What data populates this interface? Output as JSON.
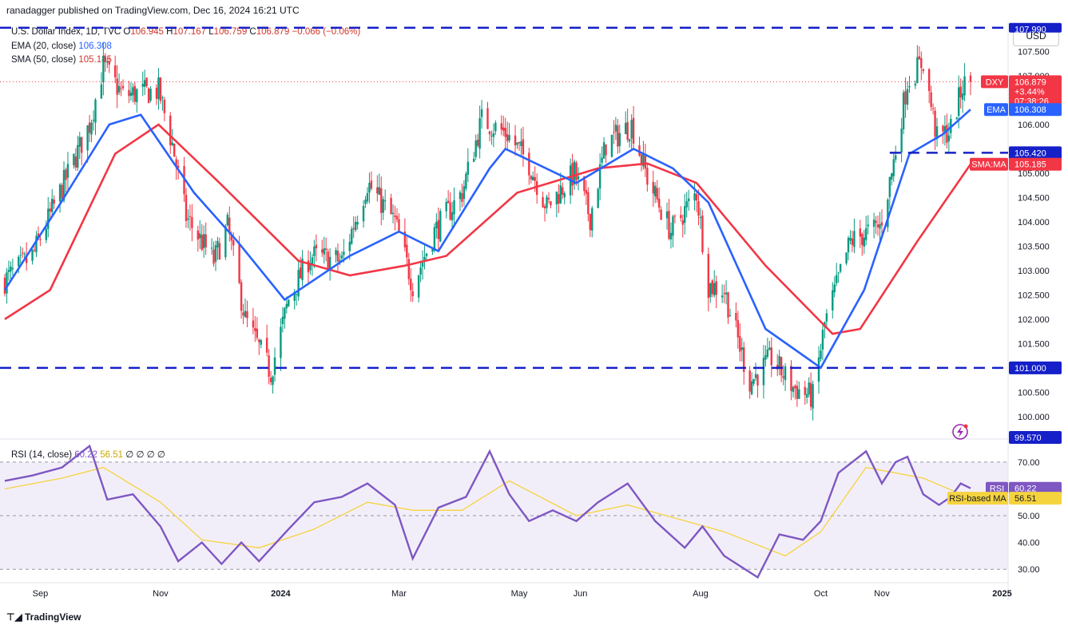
{
  "header": {
    "published": "ranadagger published on TradingView.com, Dec 16, 2024 16:21 UTC"
  },
  "legend": {
    "symbol": "U.S. Dollar Index, 1D, TVC",
    "o_label": "O",
    "o": "106.945",
    "h_label": "H",
    "h": "107.167",
    "l_label": "L",
    "l": "106.759",
    "c_label": "C",
    "c": "106.879",
    "change": "−0.066 (−0.06%)",
    "ema_label": "EMA (20, close)",
    "ema_value": "106.308",
    "sma_label": "SMA (50, close)",
    "sma_value": "105.185",
    "rsi_label": "RSI (14, close)",
    "rsi_value": "60.22",
    "rsi_ma_value": "56.51",
    "rsi_extra": "∅ ∅ ∅ ∅"
  },
  "currency_button": "USD",
  "price_ticks": [
    "107.500",
    "107.000",
    "106.500",
    "106.000",
    "105.500",
    "105.000",
    "104.500",
    "104.000",
    "103.500",
    "103.000",
    "102.500",
    "102.000",
    "101.500",
    "101.000",
    "100.500",
    "100.000"
  ],
  "rsi_ticks": [
    "70.00",
    "50.00",
    "40.00",
    "30.00"
  ],
  "x_ticks": [
    "Sep",
    "Nov",
    "2024",
    "Mar",
    "May",
    "Jun",
    "Aug",
    "Oct",
    "Nov",
    "2025"
  ],
  "price_badges": {
    "dxy_label": "DXY",
    "dxy_price": "106.879",
    "dxy_pct": "+3.44%",
    "dxy_time": "07:38:26",
    "ema_label": "EMA",
    "ema_price": "106.308",
    "support_price": "105.420",
    "sma_label": "SMA:MA",
    "sma_price": "105.185",
    "top_price": "107.990",
    "lower_support": "101.000",
    "bottom_price": "99.570"
  },
  "rsi_badges": {
    "rsi_label": "RSI",
    "rsi_value": "60.22",
    "ma_label": "RSI-based MA",
    "ma_value": "56.51"
  },
  "brand": "TradingView",
  "colors": {
    "up": "#089981",
    "down": "#f23645",
    "ema": "#2962ff",
    "sma": "#f23645",
    "rsi": "#7e57c2",
    "rsi_ma": "#f5d33f",
    "level": "#1520c8"
  },
  "chart_data": {
    "type": "candlestick",
    "symbol": "DXY",
    "timeframe": "1D",
    "x_range": [
      "2023-08-14",
      "2024-12-31"
    ],
    "ylim": [
      99.57,
      108.1
    ],
    "levels": [
      107.99,
      105.42,
      101.0
    ],
    "price_path": [
      [
        "2023-08-14",
        102.8
      ],
      [
        "2023-08-28",
        103.3
      ],
      [
        "2023-09-12",
        104.7
      ],
      [
        "2023-09-26",
        106.0
      ],
      [
        "2023-10-03",
        107.2
      ],
      [
        "2023-10-13",
        106.6
      ],
      [
        "2023-10-31",
        106.7
      ],
      [
        "2023-11-07",
        105.6
      ],
      [
        "2023-11-14",
        104.1
      ],
      [
        "2023-11-28",
        103.2
      ],
      [
        "2023-12-05",
        103.9
      ],
      [
        "2023-12-14",
        102.0
      ],
      [
        "2023-12-27",
        100.9
      ],
      [
        "2024-01-05",
        102.4
      ],
      [
        "2024-01-16",
        103.3
      ],
      [
        "2024-02-01",
        103.2
      ],
      [
        "2024-02-14",
        104.8
      ],
      [
        "2024-02-28",
        104.0
      ],
      [
        "2024-03-08",
        102.7
      ],
      [
        "2024-03-19",
        103.8
      ],
      [
        "2024-04-02",
        104.6
      ],
      [
        "2024-04-12",
        106.1
      ],
      [
        "2024-04-25",
        105.8
      ],
      [
        "2024-05-06",
        105.2
      ],
      [
        "2024-05-15",
        104.3
      ],
      [
        "2024-05-29",
        105.0
      ],
      [
        "2024-06-06",
        104.1
      ],
      [
        "2024-06-14",
        105.6
      ],
      [
        "2024-06-27",
        106.0
      ],
      [
        "2024-07-05",
        104.9
      ],
      [
        "2024-07-17",
        103.8
      ],
      [
        "2024-07-30",
        104.6
      ],
      [
        "2024-08-05",
        102.7
      ],
      [
        "2024-08-13",
        102.6
      ],
      [
        "2024-08-26",
        100.7
      ],
      [
        "2024-09-06",
        101.2
      ],
      [
        "2024-09-17",
        100.6
      ],
      [
        "2024-09-27",
        100.4
      ],
      [
        "2024-10-03",
        101.9
      ],
      [
        "2024-10-16",
        103.6
      ],
      [
        "2024-10-31",
        103.9
      ],
      [
        "2024-11-06",
        105.0
      ],
      [
        "2024-11-14",
        106.9
      ],
      [
        "2024-11-22",
        107.3
      ],
      [
        "2024-11-29",
        105.7
      ],
      [
        "2024-12-06",
        105.9
      ],
      [
        "2024-12-12",
        106.8
      ],
      [
        "2024-12-16",
        106.879
      ]
    ],
    "ema_path": [
      [
        "2023-08-14",
        102.6
      ],
      [
        "2023-09-10",
        104.3
      ],
      [
        "2023-10-06",
        106.0
      ],
      [
        "2023-10-22",
        106.2
      ],
      [
        "2023-11-18",
        104.6
      ],
      [
        "2023-12-10",
        103.6
      ],
      [
        "2024-01-03",
        102.4
      ],
      [
        "2024-02-05",
        103.3
      ],
      [
        "2024-03-01",
        103.8
      ],
      [
        "2024-03-21",
        103.4
      ],
      [
        "2024-04-16",
        105.1
      ],
      [
        "2024-04-24",
        105.5
      ],
      [
        "2024-05-30",
        104.8
      ],
      [
        "2024-06-28",
        105.5
      ],
      [
        "2024-07-18",
        105.1
      ],
      [
        "2024-08-05",
        104.4
      ],
      [
        "2024-09-03",
        101.8
      ],
      [
        "2024-10-01",
        101.0
      ],
      [
        "2024-10-23",
        102.6
      ],
      [
        "2024-11-15",
        105.4
      ],
      [
        "2024-12-02",
        105.8
      ],
      [
        "2024-12-16",
        106.308
      ]
    ],
    "sma_path": [
      [
        "2023-08-14",
        102.0
      ],
      [
        "2023-09-06",
        102.6
      ],
      [
        "2023-10-09",
        105.4
      ],
      [
        "2023-10-31",
        106.0
      ],
      [
        "2023-12-01",
        104.8
      ],
      [
        "2024-01-10",
        103.2
      ],
      [
        "2024-02-05",
        102.9
      ],
      [
        "2024-03-04",
        103.1
      ],
      [
        "2024-03-25",
        103.3
      ],
      [
        "2024-04-30",
        104.6
      ],
      [
        "2024-06-10",
        105.1
      ],
      [
        "2024-07-05",
        105.2
      ],
      [
        "2024-07-30",
        104.8
      ],
      [
        "2024-09-03",
        103.1
      ],
      [
        "2024-10-07",
        101.7
      ],
      [
        "2024-10-21",
        101.8
      ],
      [
        "2024-11-19",
        103.6
      ],
      [
        "2024-12-16",
        105.185
      ]
    ],
    "rsi": {
      "ylim": [
        25,
        78
      ],
      "levels": [
        70,
        50,
        30
      ],
      "path": [
        [
          "2023-08-14",
          63
        ],
        [
          "2023-08-28",
          65
        ],
        [
          "2023-09-12",
          68
        ],
        [
          "2023-09-26",
          76
        ],
        [
          "2023-10-05",
          56
        ],
        [
          "2023-10-18",
          58
        ],
        [
          "2023-11-01",
          46
        ],
        [
          "2023-11-10",
          33
        ],
        [
          "2023-11-22",
          40
        ],
        [
          "2023-12-02",
          32
        ],
        [
          "2023-12-12",
          40
        ],
        [
          "2023-12-21",
          33
        ],
        [
          "2024-01-05",
          45
        ],
        [
          "2024-01-18",
          55
        ],
        [
          "2024-02-01",
          57
        ],
        [
          "2024-02-14",
          62
        ],
        [
          "2024-02-28",
          54
        ],
        [
          "2024-03-08",
          34
        ],
        [
          "2024-03-21",
          53
        ],
        [
          "2024-04-04",
          57
        ],
        [
          "2024-04-16",
          74
        ],
        [
          "2024-04-26",
          58
        ],
        [
          "2024-05-06",
          48
        ],
        [
          "2024-05-18",
          52
        ],
        [
          "2024-05-30",
          48
        ],
        [
          "2024-06-10",
          55
        ],
        [
          "2024-06-25",
          62
        ],
        [
          "2024-07-09",
          48
        ],
        [
          "2024-07-24",
          38
        ],
        [
          "2024-08-02",
          46
        ],
        [
          "2024-08-13",
          35
        ],
        [
          "2024-08-30",
          27
        ],
        [
          "2024-09-10",
          43
        ],
        [
          "2024-09-22",
          41
        ],
        [
          "2024-10-01",
          48
        ],
        [
          "2024-10-10",
          66
        ],
        [
          "2024-10-24",
          74
        ],
        [
          "2024-11-01",
          62
        ],
        [
          "2024-11-08",
          70
        ],
        [
          "2024-11-14",
          72
        ],
        [
          "2024-11-22",
          58
        ],
        [
          "2024-11-30",
          54
        ],
        [
          "2024-12-06",
          57
        ],
        [
          "2024-12-11",
          62
        ],
        [
          "2024-12-16",
          60.22
        ]
      ],
      "ma_path": [
        [
          "2023-08-14",
          60
        ],
        [
          "2023-09-12",
          64
        ],
        [
          "2023-10-03",
          68
        ],
        [
          "2023-11-01",
          55
        ],
        [
          "2023-11-22",
          41
        ],
        [
          "2023-12-21",
          38
        ],
        [
          "2024-01-18",
          45
        ],
        [
          "2024-02-14",
          55
        ],
        [
          "2024-03-08",
          52
        ],
        [
          "2024-04-02",
          52
        ],
        [
          "2024-04-26",
          63
        ],
        [
          "2024-05-30",
          50
        ],
        [
          "2024-06-25",
          54
        ],
        [
          "2024-08-13",
          44
        ],
        [
          "2024-09-13",
          35
        ],
        [
          "2024-10-01",
          44
        ],
        [
          "2024-10-24",
          68
        ],
        [
          "2024-11-22",
          64
        ],
        [
          "2024-12-16",
          56.51
        ]
      ]
    }
  }
}
